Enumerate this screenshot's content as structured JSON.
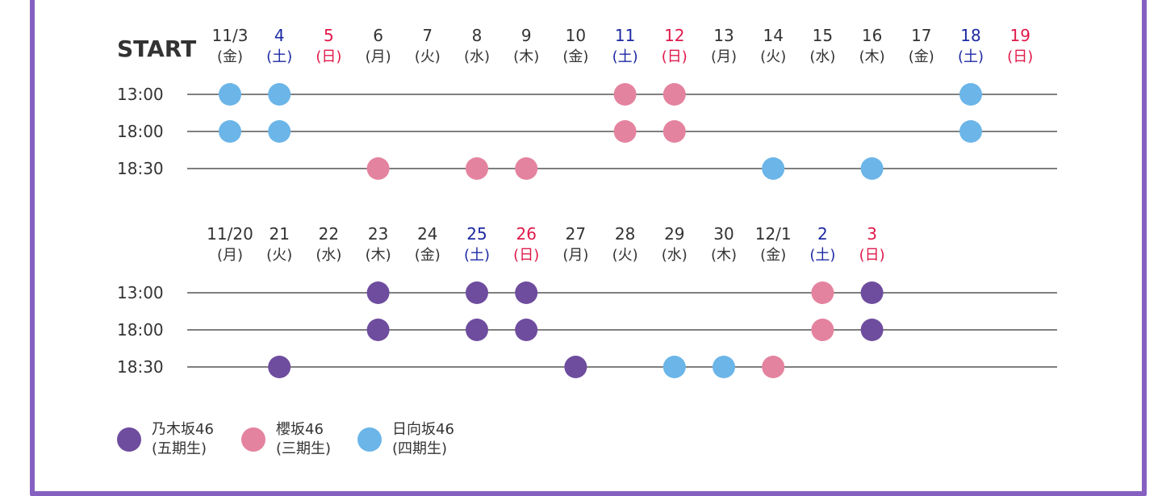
{
  "start_label": "START",
  "colors": {
    "frame": "#8660c1",
    "nogizaka": "#6e4c9e",
    "sakurazaka": "#e4839f",
    "hinatazaka": "#6bb5e8",
    "saturday": "#1d2aa3",
    "sunday": "#e0184a",
    "weekday": "#333333",
    "line": "#555555"
  },
  "schedule_blocks": [
    {
      "dates": [
        {
          "date": "11/3",
          "dow": "(金)",
          "type": "weekday"
        },
        {
          "date": "4",
          "dow": "(土)",
          "type": "saturday"
        },
        {
          "date": "5",
          "dow": "(日)",
          "type": "sunday"
        },
        {
          "date": "6",
          "dow": "(月)",
          "type": "weekday"
        },
        {
          "date": "7",
          "dow": "(火)",
          "type": "weekday"
        },
        {
          "date": "8",
          "dow": "(水)",
          "type": "weekday"
        },
        {
          "date": "9",
          "dow": "(木)",
          "type": "weekday"
        },
        {
          "date": "10",
          "dow": "(金)",
          "type": "weekday"
        },
        {
          "date": "11",
          "dow": "(土)",
          "type": "saturday"
        },
        {
          "date": "12",
          "dow": "(日)",
          "type": "sunday"
        },
        {
          "date": "13",
          "dow": "(月)",
          "type": "weekday"
        },
        {
          "date": "14",
          "dow": "(火)",
          "type": "weekday"
        },
        {
          "date": "15",
          "dow": "(水)",
          "type": "weekday"
        },
        {
          "date": "16",
          "dow": "(木)",
          "type": "weekday"
        },
        {
          "date": "17",
          "dow": "(金)",
          "type": "weekday"
        },
        {
          "date": "18",
          "dow": "(土)",
          "type": "saturday"
        },
        {
          "date": "19",
          "dow": "(日)",
          "type": "sunday"
        }
      ],
      "rows": [
        {
          "time": "13:00",
          "shows": [
            {
              "date": "11/3",
              "group": "hinatazaka"
            },
            {
              "date": "4",
              "group": "hinatazaka"
            },
            {
              "date": "11",
              "group": "sakurazaka"
            },
            {
              "date": "12",
              "group": "sakurazaka"
            },
            {
              "date": "18",
              "group": "hinatazaka"
            }
          ]
        },
        {
          "time": "18:00",
          "shows": [
            {
              "date": "11/3",
              "group": "hinatazaka"
            },
            {
              "date": "4",
              "group": "hinatazaka"
            },
            {
              "date": "11",
              "group": "sakurazaka"
            },
            {
              "date": "12",
              "group": "sakurazaka"
            },
            {
              "date": "18",
              "group": "hinatazaka"
            }
          ]
        },
        {
          "time": "18:30",
          "shows": [
            {
              "date": "6",
              "group": "sakurazaka"
            },
            {
              "date": "8",
              "group": "sakurazaka"
            },
            {
              "date": "9",
              "group": "sakurazaka"
            },
            {
              "date": "14",
              "group": "hinatazaka"
            },
            {
              "date": "16",
              "group": "hinatazaka"
            }
          ]
        }
      ]
    },
    {
      "dates": [
        {
          "date": "11/20",
          "dow": "(月)",
          "type": "weekday"
        },
        {
          "date": "21",
          "dow": "(火)",
          "type": "weekday"
        },
        {
          "date": "22",
          "dow": "(水)",
          "type": "weekday"
        },
        {
          "date": "23",
          "dow": "(木)",
          "type": "weekday"
        },
        {
          "date": "24",
          "dow": "(金)",
          "type": "weekday"
        },
        {
          "date": "25",
          "dow": "(土)",
          "type": "saturday"
        },
        {
          "date": "26",
          "dow": "(日)",
          "type": "sunday"
        },
        {
          "date": "27",
          "dow": "(月)",
          "type": "weekday"
        },
        {
          "date": "28",
          "dow": "(火)",
          "type": "weekday"
        },
        {
          "date": "29",
          "dow": "(水)",
          "type": "weekday"
        },
        {
          "date": "30",
          "dow": "(木)",
          "type": "weekday"
        },
        {
          "date": "12/1",
          "dow": "(金)",
          "type": "weekday"
        },
        {
          "date": "2",
          "dow": "(土)",
          "type": "saturday"
        },
        {
          "date": "3",
          "dow": "(日)",
          "type": "sunday"
        }
      ],
      "rows": [
        {
          "time": "13:00",
          "shows": [
            {
              "date": "23",
              "group": "nogizaka"
            },
            {
              "date": "25",
              "group": "nogizaka"
            },
            {
              "date": "26",
              "group": "nogizaka"
            },
            {
              "date": "2",
              "group": "sakurazaka"
            },
            {
              "date": "3",
              "group": "nogizaka"
            }
          ]
        },
        {
          "time": "18:00",
          "shows": [
            {
              "date": "23",
              "group": "nogizaka"
            },
            {
              "date": "25",
              "group": "nogizaka"
            },
            {
              "date": "26",
              "group": "nogizaka"
            },
            {
              "date": "2",
              "group": "sakurazaka"
            },
            {
              "date": "3",
              "group": "nogizaka"
            }
          ]
        },
        {
          "time": "18:30",
          "shows": [
            {
              "date": "21",
              "group": "nogizaka"
            },
            {
              "date": "27",
              "group": "nogizaka"
            },
            {
              "date": "29",
              "group": "hinatazaka"
            },
            {
              "date": "30",
              "group": "hinatazaka"
            },
            {
              "date": "12/1",
              "group": "sakurazaka"
            }
          ]
        }
      ]
    }
  ],
  "legend": [
    {
      "group": "nogizaka",
      "line1": "乃木坂46",
      "line2": "(五期生)"
    },
    {
      "group": "sakurazaka",
      "line1": "櫻坂46",
      "line2": "(三期生)"
    },
    {
      "group": "hinatazaka",
      "line1": "日向坂46",
      "line2": "(四期生)"
    }
  ]
}
